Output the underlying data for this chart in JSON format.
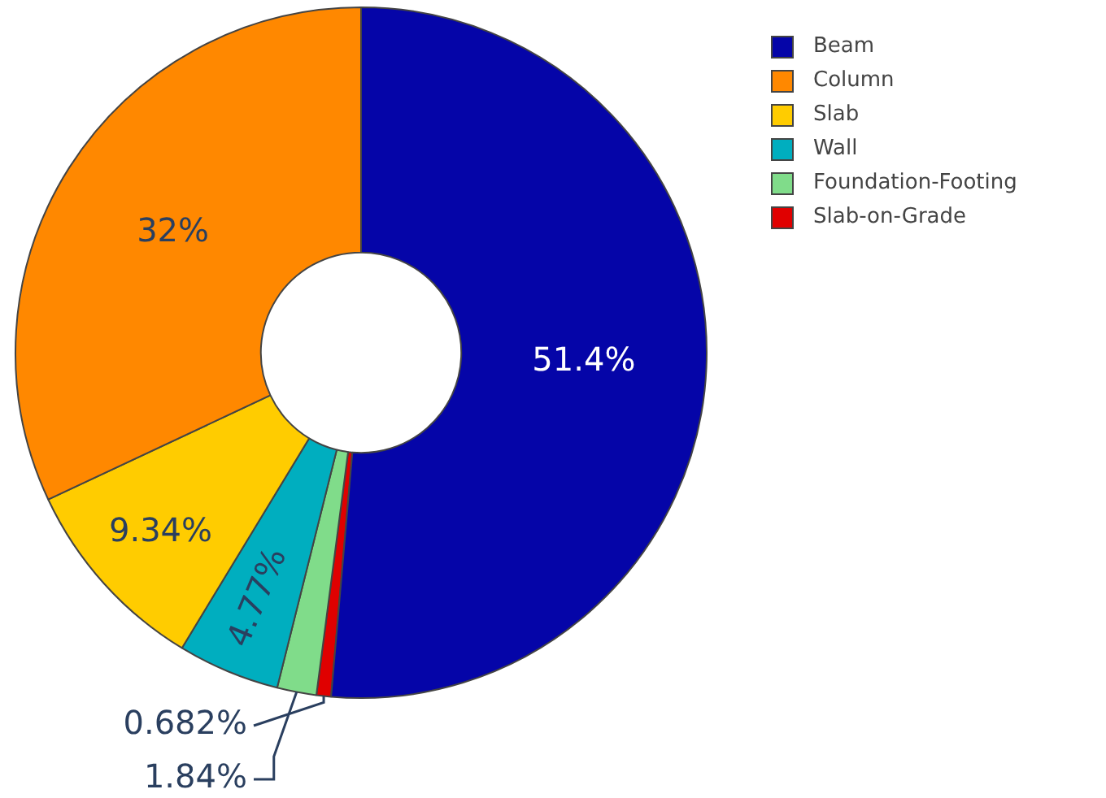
{
  "chart_data": {
    "type": "donut",
    "categories": [
      "Beam",
      "Column",
      "Slab",
      "Wall",
      "Foundation-Footing",
      "Slab-on-Grade"
    ],
    "values": [
      51.4,
      32,
      9.34,
      4.77,
      1.84,
      0.682
    ],
    "value_labels": [
      "51.4%",
      "32%",
      "9.34%",
      "4.77%",
      "1.84%",
      "0.682%"
    ],
    "colors": [
      "#0505a8",
      "#ff8800",
      "#ffcc00",
      "#00aebf",
      "#80dc8a",
      "#e00000"
    ],
    "legend": "top right"
  }
}
